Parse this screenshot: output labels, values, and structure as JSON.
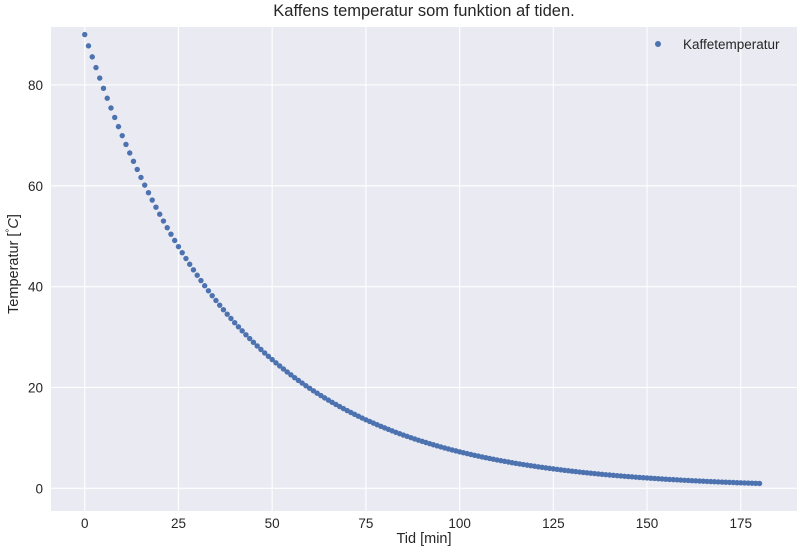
{
  "chart_data": {
    "type": "scatter",
    "title": "Kaffens temperatur som funktion af tiden.",
    "xlabel": "Tid [min]",
    "ylabel": "Temperatur [",
    "ylabel_degree": "°",
    "ylabel_unit": "C",
    "ylabel_close": "]",
    "xlim": [
      -9,
      190
    ],
    "ylim": [
      -4.5,
      91.5
    ],
    "x_ticks": [
      0,
      25,
      50,
      75,
      100,
      125,
      150,
      175
    ],
    "y_ticks": [
      0,
      20,
      40,
      60,
      80
    ],
    "grid": true,
    "legend_position": "top-right",
    "series": [
      {
        "name": "Kaffetemperatur",
        "color": "#4c72b0",
        "model": {
          "x_start": 0,
          "x_end": 180,
          "x_step": 1,
          "y0": 90,
          "decay_rate": 0.0252
        }
      }
    ]
  },
  "colors": {
    "plot_background": "#eaeaf2",
    "grid": "#ffffff",
    "marker": "#4c72b0",
    "text": "#262626"
  }
}
